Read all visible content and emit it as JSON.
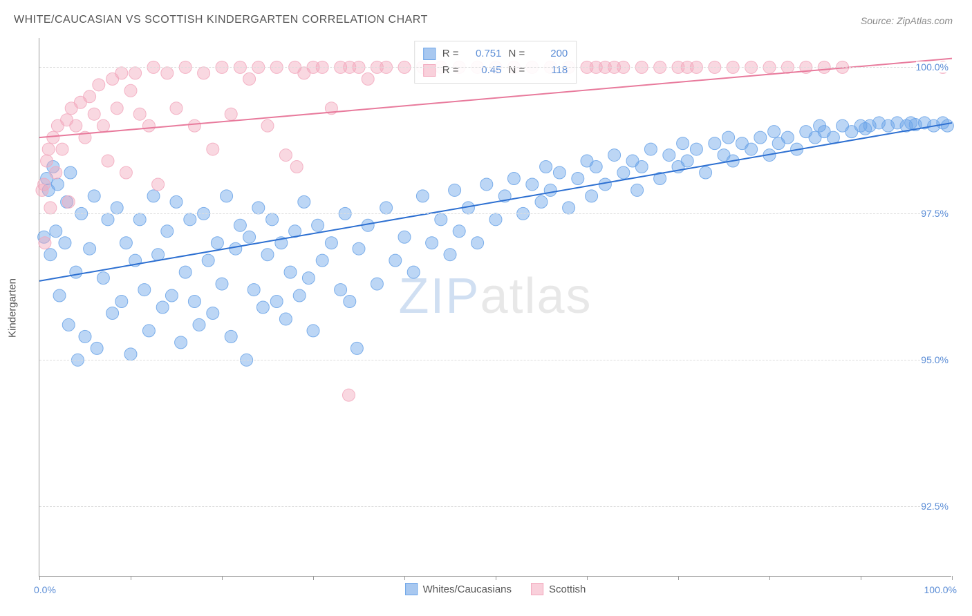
{
  "title": "WHITE/CAUCASIAN VS SCOTTISH KINDERGARTEN CORRELATION CHART",
  "source": "Source: ZipAtlas.com",
  "watermark_zip": "ZIP",
  "watermark_atlas": "atlas",
  "y_axis_title": "Kindergarten",
  "x_label_min": "0.0%",
  "x_label_max": "100.0%",
  "chart": {
    "type": "scatter",
    "background_color": "#ffffff",
    "grid_color": "#dddddd",
    "grid_dash": "4,4",
    "axis_color": "#999999",
    "label_color": "#5b8dd6",
    "text_color": "#555555",
    "title_fontsize": 16,
    "label_fontsize": 14,
    "xlim": [
      0,
      100
    ],
    "ylim": [
      91.3,
      100.5
    ],
    "y_ticks": [
      92.5,
      95.0,
      97.5,
      100.0
    ],
    "y_tick_labels": [
      "92.5%",
      "95.0%",
      "97.5%",
      "100.0%"
    ],
    "x_ticks": [
      0,
      10,
      20,
      30,
      40,
      50,
      60,
      70,
      80,
      90,
      100
    ],
    "marker_radius": 9,
    "marker_opacity": 0.45,
    "marker_stroke_opacity": 0.85,
    "line_width": 2,
    "series": [
      {
        "name": "Whites/Caucasians",
        "color": "#6aa3e8",
        "line_color": "#2c6fd1",
        "r": 0.751,
        "n": 200,
        "trend": {
          "x1": 0,
          "y1": 96.35,
          "x2": 100,
          "y2": 99.05
        },
        "points": [
          [
            0.5,
            97.1
          ],
          [
            0.8,
            98.1
          ],
          [
            1.0,
            97.9
          ],
          [
            1.2,
            96.8
          ],
          [
            1.5,
            98.3
          ],
          [
            1.8,
            97.2
          ],
          [
            2.0,
            98.0
          ],
          [
            2.2,
            96.1
          ],
          [
            2.8,
            97.0
          ],
          [
            3.0,
            97.7
          ],
          [
            3.2,
            95.6
          ],
          [
            3.4,
            98.2
          ],
          [
            4.0,
            96.5
          ],
          [
            4.2,
            95.0
          ],
          [
            4.6,
            97.5
          ],
          [
            5.0,
            95.4
          ],
          [
            5.5,
            96.9
          ],
          [
            6.0,
            97.8
          ],
          [
            6.3,
            95.2
          ],
          [
            7.0,
            96.4
          ],
          [
            7.5,
            97.4
          ],
          [
            8.0,
            95.8
          ],
          [
            8.5,
            97.6
          ],
          [
            9.0,
            96.0
          ],
          [
            9.5,
            97.0
          ],
          [
            10.0,
            95.1
          ],
          [
            10.5,
            96.7
          ],
          [
            11.0,
            97.4
          ],
          [
            11.5,
            96.2
          ],
          [
            12.0,
            95.5
          ],
          [
            12.5,
            97.8
          ],
          [
            13.0,
            96.8
          ],
          [
            13.5,
            95.9
          ],
          [
            14.0,
            97.2
          ],
          [
            14.5,
            96.1
          ],
          [
            15.0,
            97.7
          ],
          [
            15.5,
            95.3
          ],
          [
            16.0,
            96.5
          ],
          [
            16.5,
            97.4
          ],
          [
            17.0,
            96.0
          ],
          [
            17.5,
            95.6
          ],
          [
            18.0,
            97.5
          ],
          [
            18.5,
            96.7
          ],
          [
            19.0,
            95.8
          ],
          [
            19.5,
            97.0
          ],
          [
            20.0,
            96.3
          ],
          [
            20.5,
            97.8
          ],
          [
            21.0,
            95.4
          ],
          [
            21.5,
            96.9
          ],
          [
            22.0,
            97.3
          ],
          [
            22.7,
            95.0
          ],
          [
            23.0,
            97.1
          ],
          [
            23.5,
            96.2
          ],
          [
            24.0,
            97.6
          ],
          [
            24.5,
            95.9
          ],
          [
            25.0,
            96.8
          ],
          [
            25.5,
            97.4
          ],
          [
            26.0,
            96.0
          ],
          [
            26.5,
            97.0
          ],
          [
            27.0,
            95.7
          ],
          [
            27.5,
            96.5
          ],
          [
            28.0,
            97.2
          ],
          [
            28.5,
            96.1
          ],
          [
            29.0,
            97.7
          ],
          [
            29.5,
            96.4
          ],
          [
            30.0,
            95.5
          ],
          [
            30.5,
            97.3
          ],
          [
            31.0,
            96.7
          ],
          [
            32.0,
            97.0
          ],
          [
            33.0,
            96.2
          ],
          [
            33.5,
            97.5
          ],
          [
            34.0,
            96.0
          ],
          [
            34.8,
            95.2
          ],
          [
            35.0,
            96.9
          ],
          [
            36.0,
            97.3
          ],
          [
            37.0,
            96.3
          ],
          [
            38.0,
            97.6
          ],
          [
            39.0,
            96.7
          ],
          [
            40.0,
            97.1
          ],
          [
            41.0,
            96.5
          ],
          [
            42.0,
            97.8
          ],
          [
            43.0,
            97.0
          ],
          [
            44.0,
            97.4
          ],
          [
            45.0,
            96.8
          ],
          [
            45.5,
            97.9
          ],
          [
            46.0,
            97.2
          ],
          [
            47.0,
            97.6
          ],
          [
            48.0,
            97.0
          ],
          [
            49.0,
            98.0
          ],
          [
            50.0,
            97.4
          ],
          [
            51.0,
            97.8
          ],
          [
            52.0,
            98.1
          ],
          [
            53.0,
            97.5
          ],
          [
            54.0,
            98.0
          ],
          [
            55.0,
            97.7
          ],
          [
            55.5,
            98.3
          ],
          [
            56.0,
            97.9
          ],
          [
            57.0,
            98.2
          ],
          [
            58.0,
            97.6
          ],
          [
            59.0,
            98.1
          ],
          [
            60.0,
            98.4
          ],
          [
            60.5,
            97.8
          ],
          [
            61.0,
            98.3
          ],
          [
            62.0,
            98.0
          ],
          [
            63.0,
            98.5
          ],
          [
            64.0,
            98.2
          ],
          [
            65.0,
            98.4
          ],
          [
            65.5,
            97.9
          ],
          [
            66.0,
            98.3
          ],
          [
            67.0,
            98.6
          ],
          [
            68.0,
            98.1
          ],
          [
            69.0,
            98.5
          ],
          [
            70.0,
            98.3
          ],
          [
            70.5,
            98.7
          ],
          [
            71.0,
            98.4
          ],
          [
            72.0,
            98.6
          ],
          [
            73.0,
            98.2
          ],
          [
            74.0,
            98.7
          ],
          [
            75.0,
            98.5
          ],
          [
            75.5,
            98.8
          ],
          [
            76.0,
            98.4
          ],
          [
            77.0,
            98.7
          ],
          [
            78.0,
            98.6
          ],
          [
            79.0,
            98.8
          ],
          [
            80.0,
            98.5
          ],
          [
            80.5,
            98.9
          ],
          [
            81.0,
            98.7
          ],
          [
            82.0,
            98.8
          ],
          [
            83.0,
            98.6
          ],
          [
            84.0,
            98.9
          ],
          [
            85.0,
            98.8
          ],
          [
            85.5,
            99.0
          ],
          [
            86.0,
            98.9
          ],
          [
            87.0,
            98.8
          ],
          [
            88.0,
            99.0
          ],
          [
            89.0,
            98.9
          ],
          [
            90.0,
            99.0
          ],
          [
            90.5,
            98.95
          ],
          [
            91.0,
            99.0
          ],
          [
            92.0,
            99.05
          ],
          [
            93.0,
            99.0
          ],
          [
            94.0,
            99.05
          ],
          [
            95.0,
            99.0
          ],
          [
            95.5,
            99.05
          ],
          [
            96.0,
            99.02
          ],
          [
            97.0,
            99.05
          ],
          [
            98.0,
            99.0
          ],
          [
            99.0,
            99.05
          ],
          [
            99.5,
            99.0
          ]
        ]
      },
      {
        "name": "Scottish",
        "color": "#f2a8bd",
        "line_color": "#e87a9c",
        "r": 0.45,
        "n": 118,
        "trend": {
          "x1": 0,
          "y1": 98.8,
          "x2": 100,
          "y2": 100.15
        },
        "points": [
          [
            0.3,
            97.9
          ],
          [
            0.5,
            98.0
          ],
          [
            0.6,
            97.0
          ],
          [
            0.8,
            98.4
          ],
          [
            1.0,
            98.6
          ],
          [
            1.2,
            97.6
          ],
          [
            1.5,
            98.8
          ],
          [
            1.8,
            98.2
          ],
          [
            2.0,
            99.0
          ],
          [
            2.5,
            98.6
          ],
          [
            3.0,
            99.1
          ],
          [
            3.2,
            97.7
          ],
          [
            3.5,
            99.3
          ],
          [
            4.0,
            99.0
          ],
          [
            4.5,
            99.4
          ],
          [
            5.0,
            98.8
          ],
          [
            5.5,
            99.5
          ],
          [
            6.0,
            99.2
          ],
          [
            6.5,
            99.7
          ],
          [
            7.0,
            99.0
          ],
          [
            7.5,
            98.4
          ],
          [
            8.0,
            99.8
          ],
          [
            8.5,
            99.3
          ],
          [
            9.0,
            99.9
          ],
          [
            9.5,
            98.2
          ],
          [
            10.0,
            99.6
          ],
          [
            10.5,
            99.9
          ],
          [
            11.0,
            99.2
          ],
          [
            12.0,
            99.0
          ],
          [
            12.5,
            100.0
          ],
          [
            13.0,
            98.0
          ],
          [
            14.0,
            99.9
          ],
          [
            15.0,
            99.3
          ],
          [
            16.0,
            100.0
          ],
          [
            17.0,
            99.0
          ],
          [
            18.0,
            99.9
          ],
          [
            19.0,
            98.6
          ],
          [
            20.0,
            100.0
          ],
          [
            21.0,
            99.2
          ],
          [
            22.0,
            100.0
          ],
          [
            23.0,
            99.8
          ],
          [
            24.0,
            100.0
          ],
          [
            25.0,
            99.0
          ],
          [
            26.0,
            100.0
          ],
          [
            27.0,
            98.5
          ],
          [
            28.0,
            100.0
          ],
          [
            28.2,
            98.3
          ],
          [
            29.0,
            99.9
          ],
          [
            30.0,
            100.0
          ],
          [
            31.0,
            100.0
          ],
          [
            32.0,
            99.3
          ],
          [
            33.0,
            100.0
          ],
          [
            33.9,
            94.4
          ],
          [
            34.0,
            100.0
          ],
          [
            35.0,
            100.0
          ],
          [
            36.0,
            99.8
          ],
          [
            37.0,
            100.0
          ],
          [
            38.0,
            100.0
          ],
          [
            40.0,
            100.0
          ],
          [
            42.0,
            100.0
          ],
          [
            44.0,
            100.0
          ],
          [
            46.0,
            100.0
          ],
          [
            48.0,
            100.0
          ],
          [
            50.0,
            100.0
          ],
          [
            52.0,
            100.0
          ],
          [
            54.0,
            100.0
          ],
          [
            56.0,
            100.0
          ],
          [
            58.0,
            100.0
          ],
          [
            60.0,
            100.0
          ],
          [
            61.0,
            100.0
          ],
          [
            62.0,
            100.0
          ],
          [
            63.0,
            100.0
          ],
          [
            64.0,
            100.0
          ],
          [
            66.0,
            100.0
          ],
          [
            68.0,
            100.0
          ],
          [
            70.0,
            100.0
          ],
          [
            71.0,
            100.0
          ],
          [
            72.0,
            100.0
          ],
          [
            74.0,
            100.0
          ],
          [
            76.0,
            100.0
          ],
          [
            78.0,
            100.0
          ],
          [
            80.0,
            100.0
          ],
          [
            82.0,
            100.0
          ],
          [
            84.0,
            100.0
          ],
          [
            86.0,
            100.0
          ],
          [
            88.0,
            100.0
          ],
          [
            99.0,
            100.0
          ]
        ]
      }
    ],
    "legend_items": [
      {
        "label": "Whites/Caucasians",
        "fill": "#a8c8f0",
        "stroke": "#6aa3e8"
      },
      {
        "label": "Scottish",
        "fill": "#f9d0db",
        "stroke": "#f2a8bd"
      }
    ],
    "stats_labels": {
      "r": "R =",
      "n": "N ="
    }
  }
}
